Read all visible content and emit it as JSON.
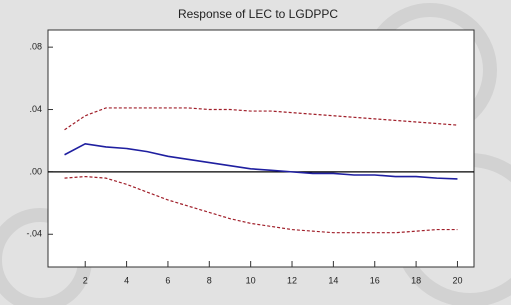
{
  "chart_data": {
    "type": "line",
    "title": "Response of LEC to LGDPPC",
    "x": [
      1,
      2,
      3,
      4,
      5,
      6,
      7,
      8,
      9,
      10,
      11,
      12,
      13,
      14,
      15,
      16,
      17,
      18,
      19,
      20
    ],
    "series": [
      {
        "color": "#1f1fa0",
        "dash": "solid",
        "values": [
          0.011,
          0.018,
          0.016,
          0.015,
          0.013,
          0.01,
          0.008,
          0.006,
          0.004,
          0.002,
          0.001,
          0.0,
          -0.001,
          -0.001,
          -0.002,
          -0.002,
          -0.003,
          -0.003,
          -0.004,
          -0.0045
        ]
      },
      {
        "color": "#a01f2a",
        "dash": "dashed",
        "values": [
          0.027,
          0.036,
          0.041,
          0.041,
          0.041,
          0.041,
          0.041,
          0.04,
          0.04,
          0.039,
          0.039,
          0.038,
          0.037,
          0.036,
          0.035,
          0.034,
          0.033,
          0.032,
          0.031,
          0.03
        ]
      },
      {
        "color": "#a01f2a",
        "dash": "dashed",
        "values": [
          -0.004,
          -0.003,
          -0.004,
          -0.008,
          -0.013,
          -0.018,
          -0.022,
          -0.026,
          -0.03,
          -0.033,
          -0.035,
          -0.037,
          -0.038,
          -0.039,
          -0.039,
          -0.039,
          -0.039,
          -0.038,
          -0.037,
          -0.037
        ]
      }
    ],
    "xlim": [
      0.2,
      20.8
    ],
    "xticks": [
      2,
      4,
      6,
      8,
      10,
      12,
      14,
      16,
      18,
      20
    ],
    "ylim": [
      -0.061,
      0.091
    ],
    "yticks": [
      {
        "value": 0.08,
        "label": ".08"
      },
      {
        "value": 0.04,
        "label": ".04"
      },
      {
        "value": 0,
        "label": ".00"
      },
      {
        "value": -0.04,
        "label": "-.04"
      }
    ]
  }
}
